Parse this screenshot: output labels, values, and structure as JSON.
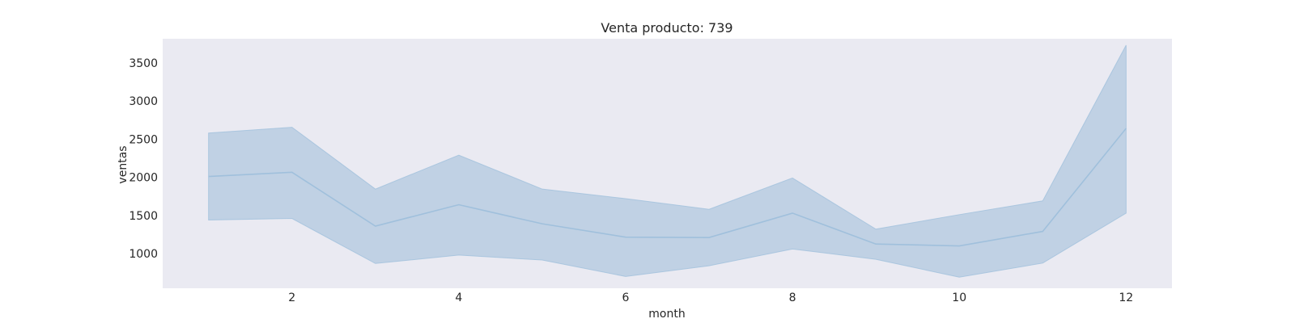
{
  "chart_data": {
    "type": "line",
    "title": "Venta producto: 739",
    "xlabel": "month",
    "ylabel": "ventas",
    "xlim": [
      0.45,
      12.55
    ],
    "ylim": [
      545,
      3815
    ],
    "xticks": [
      2,
      4,
      6,
      8,
      10,
      12
    ],
    "yticks": [
      1000,
      1500,
      2000,
      2500,
      3000,
      3500
    ],
    "grid": false,
    "colors": {
      "background": "#eaeaf2",
      "line": "#a0c0dc",
      "band": "#b9cde2"
    },
    "x": [
      1,
      2,
      3,
      4,
      5,
      6,
      7,
      8,
      9,
      10,
      11,
      12
    ],
    "series": [
      {
        "values": [
          2010,
          2065,
          1360,
          1640,
          1390,
          1215,
          1210,
          1530,
          1125,
          1100,
          1290,
          2640
        ],
        "lower": [
          1440,
          1460,
          870,
          980,
          915,
          700,
          840,
          1060,
          925,
          690,
          875,
          1530
        ],
        "upper": [
          2580,
          2655,
          1845,
          2290,
          1845,
          1720,
          1580,
          1990,
          1320,
          1510,
          1690,
          3730
        ]
      }
    ]
  }
}
